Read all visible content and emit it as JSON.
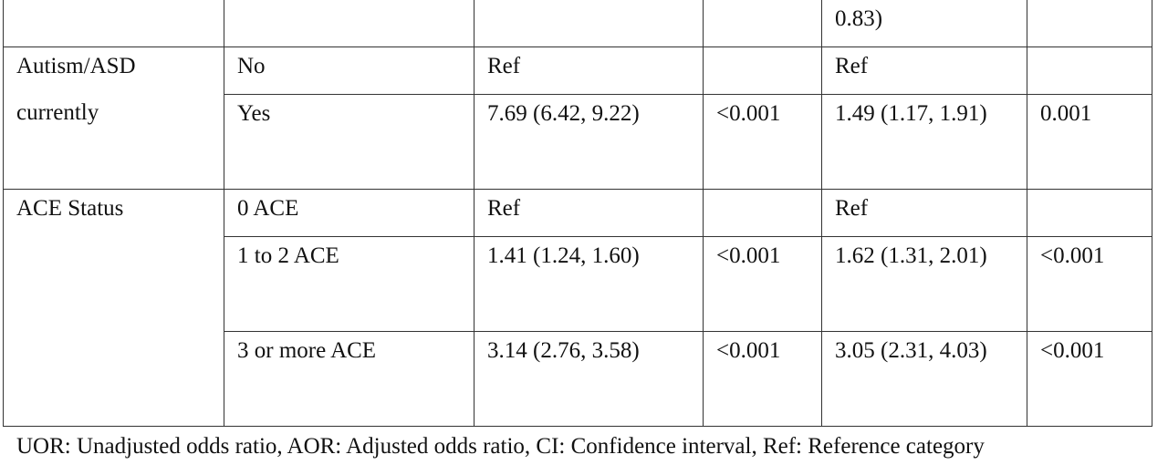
{
  "table": {
    "rows": [
      {
        "aor": "0.83)"
      },
      {
        "group": "Autism/ASD currently",
        "level": "No",
        "uor": "Ref",
        "aor": "Ref"
      },
      {
        "level": "Yes",
        "uor": "7.69 (6.42, 9.22)",
        "uor_p": "<0.001",
        "aor": "1.49 (1.17, 1.91)",
        "aor_p": "0.001"
      },
      {
        "group": "ACE Status",
        "level": "0 ACE",
        "uor": "Ref",
        "aor": "Ref"
      },
      {
        "level": "1 to 2 ACE",
        "uor": "1.41 (1.24, 1.60)",
        "uor_p": "<0.001",
        "aor": "1.62 (1.31, 2.01)",
        "aor_p": "<0.001"
      },
      {
        "level": "3 or more ACE",
        "uor": "3.14 (2.76, 3.58)",
        "uor_p": "<0.001",
        "aor": "3.05 (2.31, 4.03)",
        "aor_p": "<0.001"
      }
    ]
  },
  "footnote": "UOR: Unadjusted odds ratio, AOR: Adjusted odds ratio, CI: Confidence interval, Ref: Reference category"
}
